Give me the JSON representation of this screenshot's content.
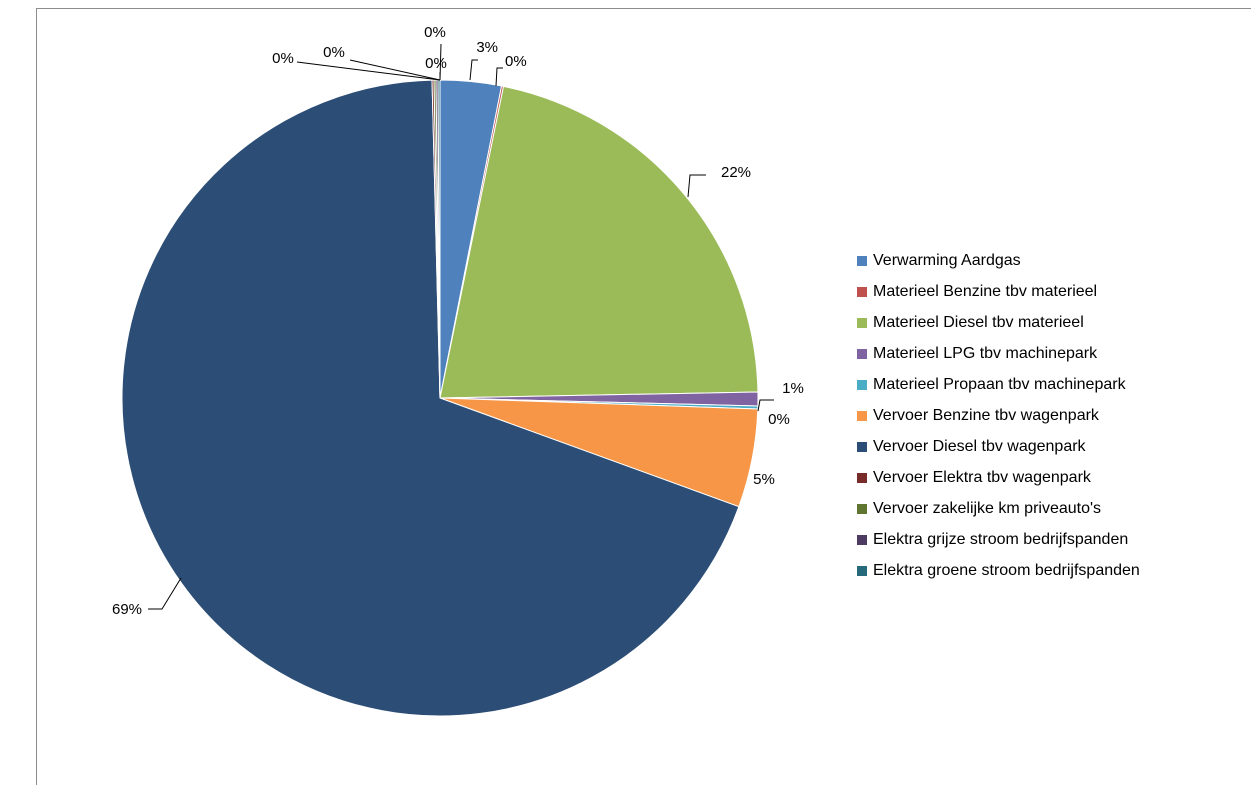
{
  "chart_data": {
    "type": "pie",
    "title": "",
    "legend_position": "right",
    "start_angle_deg": 0,
    "direction": "clockwise",
    "categories": [
      "Verwarming Aardgas",
      "Materieel Benzine tbv materieel",
      "Materieel Diesel tbv materieel",
      "Materieel LPG tbv machinepark",
      "Materieel Propaan tbv machinepark",
      "Vervoer Benzine tbv wagenpark",
      "Vervoer Diesel tbv wagenpark",
      "Vervoer Elektra tbv wagenpark",
      "Vervoer zakelijke km priveauto's",
      "Elektra grijze stroom bedrijfspanden",
      "Elektra groene stroom bedrijfspanden"
    ],
    "values": [
      3.1,
      0.1,
      21.5,
      0.7,
      0.15,
      5.0,
      69.05,
      0.1,
      0.1,
      0.1,
      0.1
    ],
    "data_labels": [
      "3%",
      "0%",
      "22%",
      "1%",
      "0%",
      "5%",
      "69%",
      "0%",
      "0%",
      "0%",
      "0%"
    ],
    "colors": [
      "#4f81bd",
      "#c0504d",
      "#9bbb59",
      "#8064a2",
      "#4bacc6",
      "#f79646",
      "#2c4d75",
      "#772c2a",
      "#5f7530",
      "#4d3b62",
      "#276a7c"
    ]
  }
}
